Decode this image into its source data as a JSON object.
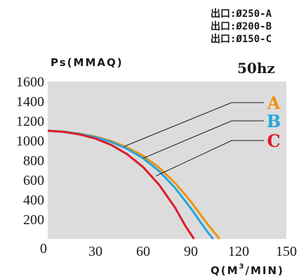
{
  "outlet_legend": [
    "出口:Ø250-A",
    "出口:Ø200-B",
    "出口:Ø150-C"
  ],
  "chart_data": {
    "type": "line",
    "frequency_label": "50hz",
    "ylabel": "Ps(MMAQ)",
    "xlabel_main": "Q(M",
    "xlabel_sup": "3",
    "xlabel_end": "/MIN)",
    "xlim": [
      0,
      150
    ],
    "ylim": [
      0,
      1600
    ],
    "x_ticks": [
      0,
      30,
      60,
      90,
      120,
      150
    ],
    "y_ticks": [
      200,
      400,
      600,
      800,
      1000,
      1200,
      1400,
      1600
    ],
    "grid": false,
    "plot_background": "#dcdcdc",
    "series": [
      {
        "name": "A",
        "color": "#f0920c",
        "label_anchor": [
          48,
          940
        ],
        "x": [
          0,
          10,
          20,
          30,
          40,
          50,
          60,
          70,
          80,
          90,
          100,
          108
        ],
        "y": [
          1100,
          1090,
          1070,
          1040,
          995,
          930,
          845,
          725,
          570,
          380,
          160,
          0
        ]
      },
      {
        "name": "B",
        "color": "#22a7de",
        "label_anchor": [
          60,
          820
        ],
        "x": [
          0,
          10,
          20,
          30,
          40,
          50,
          60,
          70,
          80,
          90,
          100,
          104
        ],
        "y": [
          1100,
          1090,
          1068,
          1035,
          985,
          915,
          820,
          690,
          520,
          310,
          80,
          0
        ]
      },
      {
        "name": "C",
        "color": "#dd1c2a",
        "label_anchor": [
          68,
          640
        ],
        "x": [
          0,
          10,
          20,
          30,
          40,
          50,
          60,
          70,
          80,
          87,
          92
        ],
        "y": [
          1100,
          1088,
          1062,
          1020,
          955,
          860,
          730,
          550,
          320,
          120,
          0
        ]
      }
    ]
  }
}
